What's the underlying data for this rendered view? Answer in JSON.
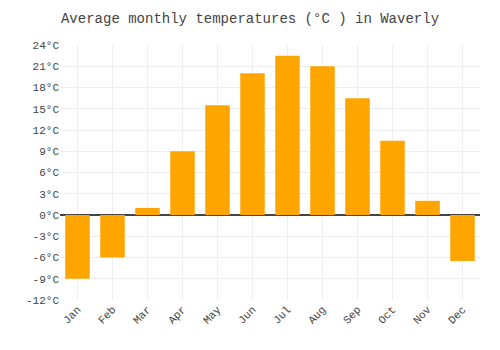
{
  "chart_data": {
    "type": "bar",
    "title": "Average monthly temperatures (°C ) in Waverly",
    "categories": [
      "Jan",
      "Feb",
      "Mar",
      "Apr",
      "May",
      "Jun",
      "Jul",
      "Aug",
      "Sep",
      "Oct",
      "Nov",
      "Dec"
    ],
    "values": [
      -9,
      -6,
      1,
      9,
      15.5,
      20,
      22.5,
      21,
      16.5,
      10.5,
      2,
      -6.5
    ],
    "color": "#FFA500",
    "ylim": [
      -12,
      24
    ],
    "yticks": [
      {
        "value": -12,
        "label": "-12°C"
      },
      {
        "value": -9,
        "label": "-9°C"
      },
      {
        "value": -6,
        "label": "-6°C"
      },
      {
        "value": -3,
        "label": "-3°C"
      },
      {
        "value": 0,
        "label": "0°C"
      },
      {
        "value": 3,
        "label": "3°C"
      },
      {
        "value": 6,
        "label": "6°C"
      },
      {
        "value": 9,
        "label": "9°C"
      },
      {
        "value": 12,
        "label": "12°C"
      },
      {
        "value": 15,
        "label": "15°C"
      },
      {
        "value": 18,
        "label": "18°C"
      },
      {
        "value": 21,
        "label": "21°C"
      },
      {
        "value": 24,
        "label": "24°C"
      }
    ],
    "grid": true
  }
}
